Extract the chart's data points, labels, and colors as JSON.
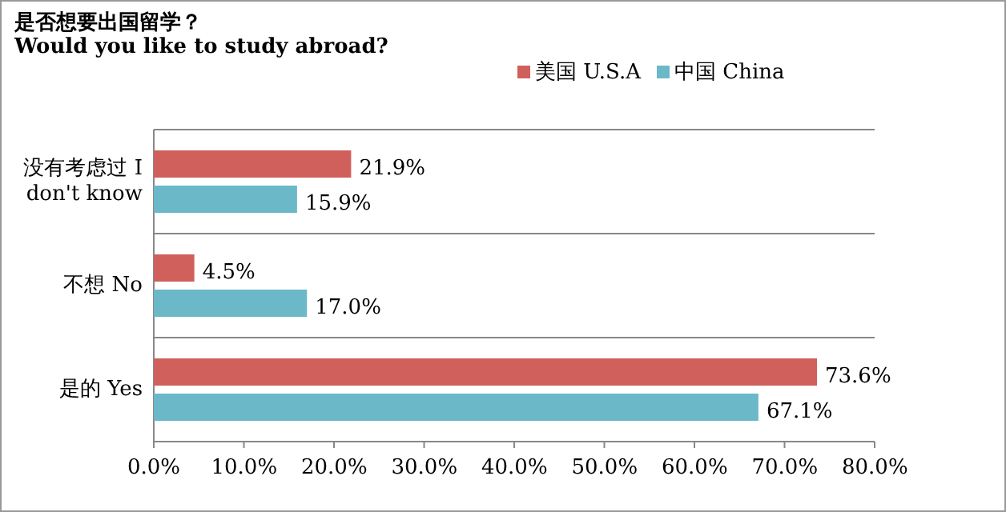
{
  "chart_data": {
    "type": "bar",
    "orientation": "horizontal",
    "title": "是否想要出国留学？",
    "subtitle": "Would you like to study abroad?",
    "categories": [
      "没有考虑过 I don't know",
      "不想  No",
      "是的  Yes"
    ],
    "series": [
      {
        "name": "美国  U.S.A",
        "color": "#d0605c",
        "values": [
          21.9,
          4.5,
          73.6
        ],
        "value_labels": [
          "21.9%",
          "4.5%",
          "73.6%"
        ]
      },
      {
        "name": "中国  China",
        "color": "#6bb8c8",
        "values": [
          15.9,
          17.0,
          67.1
        ],
        "value_labels": [
          "15.9%",
          "17.0%",
          "67.1%"
        ]
      }
    ],
    "xlim": [
      0,
      80
    ],
    "xticks": [
      {
        "value": 0,
        "label": "0.0%"
      },
      {
        "value": 10,
        "label": "10.0%"
      },
      {
        "value": 20,
        "label": "20.0%"
      },
      {
        "value": 30,
        "label": "30.0%"
      },
      {
        "value": 40,
        "label": "40.0%"
      },
      {
        "value": 50,
        "label": "50.0%"
      },
      {
        "value": 60,
        "label": "60.0%"
      },
      {
        "value": 70,
        "label": "70.0%"
      },
      {
        "value": 80,
        "label": "80.0%"
      }
    ],
    "grid": "y",
    "legend": "top right"
  }
}
